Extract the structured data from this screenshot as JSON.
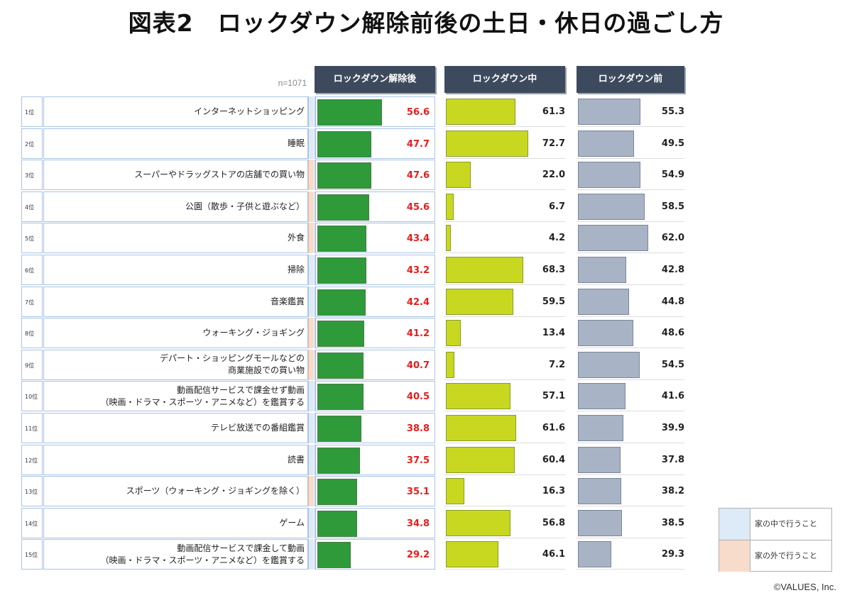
{
  "title": "図表2　ロックダウン解除前後の土日・休日の過ごし方",
  "sample_size": "n=1071",
  "copyright": "©VALUES, Inc.",
  "colors": {
    "after": "#2e9a3a",
    "during": "#c8d820",
    "before": "#a8b4c6",
    "after_value_text": "#e81c1c",
    "header_bg": "#3d4a5e",
    "home": "#ddeaf7",
    "outside": "#f7dccb"
  },
  "legend": {
    "home_label": "家の中で行うこと",
    "outside_label": "家の外で行うこと"
  },
  "chart_data": {
    "type": "bar",
    "orientation": "horizontal",
    "series_names": [
      "ロックダウン解除後",
      "ロックダウン中",
      "ロックダウン前"
    ],
    "ranks": [
      "1位",
      "2位",
      "3位",
      "4位",
      "5位",
      "6位",
      "7位",
      "8位",
      "9位",
      "10位",
      "11位",
      "12位",
      "13位",
      "14位",
      "15位"
    ],
    "categories": [
      "インターネットショッピング",
      "睡眠",
      "スーパーやドラッグストアの店舗での買い物",
      "公園（散歩・子供と遊ぶなど）",
      "外食",
      "掃除",
      "音楽鑑賞",
      "ウォーキング・ジョギング",
      "デパート・ショッピングモールなどの\n商業施設での買い物",
      "動画配信サービスで課金せず動画\n（映画・ドラマ・スポーツ・アニメなど）を鑑賞する",
      "テレビ放送での番組鑑賞",
      "読書",
      "スポーツ（ウォーキング・ジョギングを除く）",
      "ゲーム",
      "動画配信サービスで課金して動画\n（映画・ドラマ・スポーツ・アニメなど）を鑑賞する"
    ],
    "category_type": [
      "home",
      "home",
      "outside",
      "outside",
      "outside",
      "home",
      "home",
      "outside",
      "outside",
      "home",
      "home",
      "home",
      "outside",
      "home",
      "home"
    ],
    "series": [
      {
        "name": "ロックダウン解除後",
        "values": [
          56.6,
          47.7,
          47.6,
          45.6,
          43.4,
          43.2,
          42.4,
          41.2,
          40.7,
          40.5,
          38.8,
          37.5,
          35.1,
          34.8,
          29.2
        ]
      },
      {
        "name": "ロックダウン中",
        "values": [
          61.3,
          72.7,
          22.0,
          6.7,
          4.2,
          68.3,
          59.5,
          13.4,
          7.2,
          57.1,
          61.6,
          60.4,
          16.3,
          56.8,
          46.1
        ]
      },
      {
        "name": "ロックダウン前",
        "values": [
          55.3,
          49.5,
          54.9,
          58.5,
          62.0,
          42.8,
          44.8,
          48.6,
          54.5,
          41.6,
          39.9,
          37.8,
          38.2,
          38.5,
          29.3
        ]
      }
    ],
    "xlim": [
      0,
      100
    ]
  }
}
